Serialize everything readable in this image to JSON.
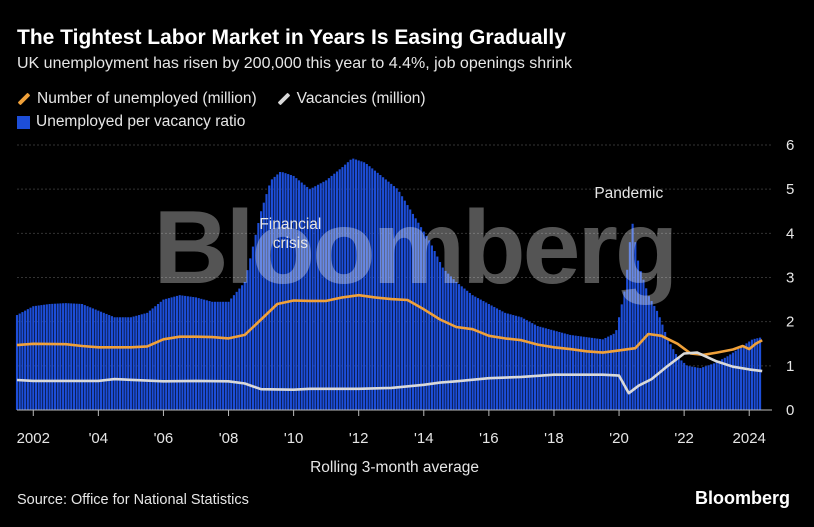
{
  "header": {
    "title": "The Tightest Labor Market in Years Is Easing Gradually",
    "subtitle": "UK unemployment has risen by 200,000 this year to 4.4%, job openings shrink"
  },
  "footer": {
    "source": "Source: Office for National Statistics",
    "brand": "Bloomberg",
    "watermark": "Bloomberg"
  },
  "colors": {
    "unemployed": "#f0a13a",
    "vacancies": "#d9d9d9",
    "ratio": "#1d4ed8"
  },
  "chart_data": {
    "type": "bar",
    "xlabel": "Rolling 3-month average",
    "ylim": [
      0,
      6
    ],
    "yticks": [
      0,
      1,
      2,
      3,
      4,
      5,
      6
    ],
    "xticks": [
      {
        "year": 2002,
        "label": "2002"
      },
      {
        "year": 2004,
        "label": "'04"
      },
      {
        "year": 2006,
        "label": "'06"
      },
      {
        "year": 2008,
        "label": "'08"
      },
      {
        "year": 2010,
        "label": "'10"
      },
      {
        "year": 2012,
        "label": "'12"
      },
      {
        "year": 2014,
        "label": "'14"
      },
      {
        "year": 2016,
        "label": "'16"
      },
      {
        "year": 2018,
        "label": "'18"
      },
      {
        "year": 2020,
        "label": "'20"
      },
      {
        "year": 2022,
        "label": "'22"
      },
      {
        "year": 2024,
        "label": "2024"
      }
    ],
    "xrange": [
      2001.5,
      2024.7
    ],
    "grid": true,
    "legend_position": "top-left",
    "annotations": [
      {
        "text": "Financial crisis",
        "lines": [
          "Financial",
          "crisis"
        ],
        "year": 2009.9,
        "y": 4.1
      },
      {
        "text": "Pandemic",
        "lines": [
          "Pandemic"
        ],
        "year": 2020.3,
        "y": 4.8
      }
    ],
    "series": [
      {
        "name": "Number of unemployed (million)",
        "type": "line",
        "color": "#f0a13a",
        "points": [
          [
            2001.5,
            1.47
          ],
          [
            2002.0,
            1.5
          ],
          [
            2003.0,
            1.49
          ],
          [
            2003.5,
            1.45
          ],
          [
            2004.0,
            1.42
          ],
          [
            2005.0,
            1.42
          ],
          [
            2005.5,
            1.44
          ],
          [
            2006.0,
            1.6
          ],
          [
            2006.5,
            1.66
          ],
          [
            2007.0,
            1.66
          ],
          [
            2007.5,
            1.65
          ],
          [
            2008.0,
            1.62
          ],
          [
            2008.5,
            1.7
          ],
          [
            2009.0,
            2.05
          ],
          [
            2009.5,
            2.4
          ],
          [
            2010.0,
            2.48
          ],
          [
            2010.5,
            2.47
          ],
          [
            2011.0,
            2.47
          ],
          [
            2011.5,
            2.55
          ],
          [
            2012.0,
            2.6
          ],
          [
            2012.5,
            2.55
          ],
          [
            2013.0,
            2.51
          ],
          [
            2013.5,
            2.49
          ],
          [
            2014.0,
            2.28
          ],
          [
            2014.5,
            2.05
          ],
          [
            2015.0,
            1.88
          ],
          [
            2015.5,
            1.83
          ],
          [
            2016.0,
            1.68
          ],
          [
            2016.5,
            1.62
          ],
          [
            2017.0,
            1.58
          ],
          [
            2017.5,
            1.48
          ],
          [
            2018.0,
            1.42
          ],
          [
            2018.5,
            1.38
          ],
          [
            2019.0,
            1.33
          ],
          [
            2019.5,
            1.3
          ],
          [
            2020.0,
            1.35
          ],
          [
            2020.5,
            1.4
          ],
          [
            2020.9,
            1.72
          ],
          [
            2021.3,
            1.68
          ],
          [
            2021.8,
            1.5
          ],
          [
            2022.2,
            1.28
          ],
          [
            2022.6,
            1.25
          ],
          [
            2023.0,
            1.3
          ],
          [
            2023.5,
            1.37
          ],
          [
            2023.8,
            1.45
          ],
          [
            2024.0,
            1.38
          ],
          [
            2024.2,
            1.5
          ],
          [
            2024.4,
            1.58
          ]
        ]
      },
      {
        "name": "Vacancies (million)",
        "type": "line",
        "color": "#d9d9d9",
        "points": [
          [
            2001.5,
            0.68
          ],
          [
            2002.0,
            0.66
          ],
          [
            2004.0,
            0.66
          ],
          [
            2004.5,
            0.7
          ],
          [
            2006.0,
            0.65
          ],
          [
            2007.0,
            0.66
          ],
          [
            2008.0,
            0.65
          ],
          [
            2008.5,
            0.6
          ],
          [
            2009.0,
            0.47
          ],
          [
            2010.0,
            0.46
          ],
          [
            2010.5,
            0.48
          ],
          [
            2011.5,
            0.48
          ],
          [
            2012.0,
            0.48
          ],
          [
            2013.0,
            0.5
          ],
          [
            2014.0,
            0.57
          ],
          [
            2014.5,
            0.62
          ],
          [
            2015.0,
            0.65
          ],
          [
            2016.0,
            0.72
          ],
          [
            2017.0,
            0.75
          ],
          [
            2018.0,
            0.8
          ],
          [
            2019.0,
            0.8
          ],
          [
            2019.5,
            0.8
          ],
          [
            2020.0,
            0.78
          ],
          [
            2020.3,
            0.38
          ],
          [
            2020.6,
            0.55
          ],
          [
            2021.0,
            0.7
          ],
          [
            2021.5,
            1.0
          ],
          [
            2022.0,
            1.28
          ],
          [
            2022.4,
            1.3
          ],
          [
            2023.0,
            1.1
          ],
          [
            2023.5,
            0.98
          ],
          [
            2024.0,
            0.92
          ],
          [
            2024.4,
            0.88
          ]
        ]
      },
      {
        "name": "Unemployed per vacancy ratio",
        "type": "bar",
        "color": "#1d4ed8",
        "points": [
          [
            2001.5,
            2.15
          ],
          [
            2002.0,
            2.35
          ],
          [
            2002.5,
            2.4
          ],
          [
            2003.0,
            2.42
          ],
          [
            2003.5,
            2.4
          ],
          [
            2004.0,
            2.25
          ],
          [
            2004.5,
            2.1
          ],
          [
            2005.0,
            2.1
          ],
          [
            2005.5,
            2.2
          ],
          [
            2006.0,
            2.5
          ],
          [
            2006.5,
            2.6
          ],
          [
            2007.0,
            2.55
          ],
          [
            2007.5,
            2.45
          ],
          [
            2008.0,
            2.45
          ],
          [
            2008.5,
            2.9
          ],
          [
            2009.0,
            4.5
          ],
          [
            2009.3,
            5.2
          ],
          [
            2009.6,
            5.4
          ],
          [
            2010.0,
            5.3
          ],
          [
            2010.5,
            5.0
          ],
          [
            2011.0,
            5.2
          ],
          [
            2011.5,
            5.5
          ],
          [
            2011.8,
            5.7
          ],
          [
            2012.2,
            5.6
          ],
          [
            2012.7,
            5.3
          ],
          [
            2013.2,
            5.0
          ],
          [
            2013.7,
            4.4
          ],
          [
            2014.2,
            3.8
          ],
          [
            2014.6,
            3.2
          ],
          [
            2015.0,
            2.9
          ],
          [
            2015.5,
            2.6
          ],
          [
            2016.0,
            2.4
          ],
          [
            2016.5,
            2.2
          ],
          [
            2017.0,
            2.1
          ],
          [
            2017.5,
            1.9
          ],
          [
            2018.0,
            1.8
          ],
          [
            2018.5,
            1.7
          ],
          [
            2019.0,
            1.65
          ],
          [
            2019.5,
            1.6
          ],
          [
            2019.9,
            1.75
          ],
          [
            2020.2,
            2.8
          ],
          [
            2020.4,
            4.3
          ],
          [
            2020.6,
            3.3
          ],
          [
            2020.9,
            2.6
          ],
          [
            2021.2,
            2.2
          ],
          [
            2021.5,
            1.6
          ],
          [
            2021.8,
            1.2
          ],
          [
            2022.1,
            1.0
          ],
          [
            2022.5,
            0.95
          ],
          [
            2022.9,
            1.05
          ],
          [
            2023.3,
            1.2
          ],
          [
            2023.7,
            1.4
          ],
          [
            2024.1,
            1.6
          ],
          [
            2024.4,
            1.65
          ]
        ]
      }
    ]
  }
}
